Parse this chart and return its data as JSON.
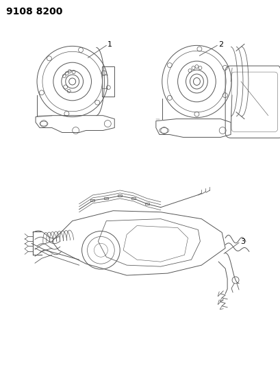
{
  "title": "9108 8200",
  "background_color": "#ffffff",
  "text_color": "#000000",
  "line_color": "#555555",
  "label1": "1",
  "label2": "2",
  "label3": "3",
  "title_fontsize": 10,
  "label_fontsize": 8,
  "fig_width": 4.1,
  "fig_height": 5.33,
  "dpi": 100
}
